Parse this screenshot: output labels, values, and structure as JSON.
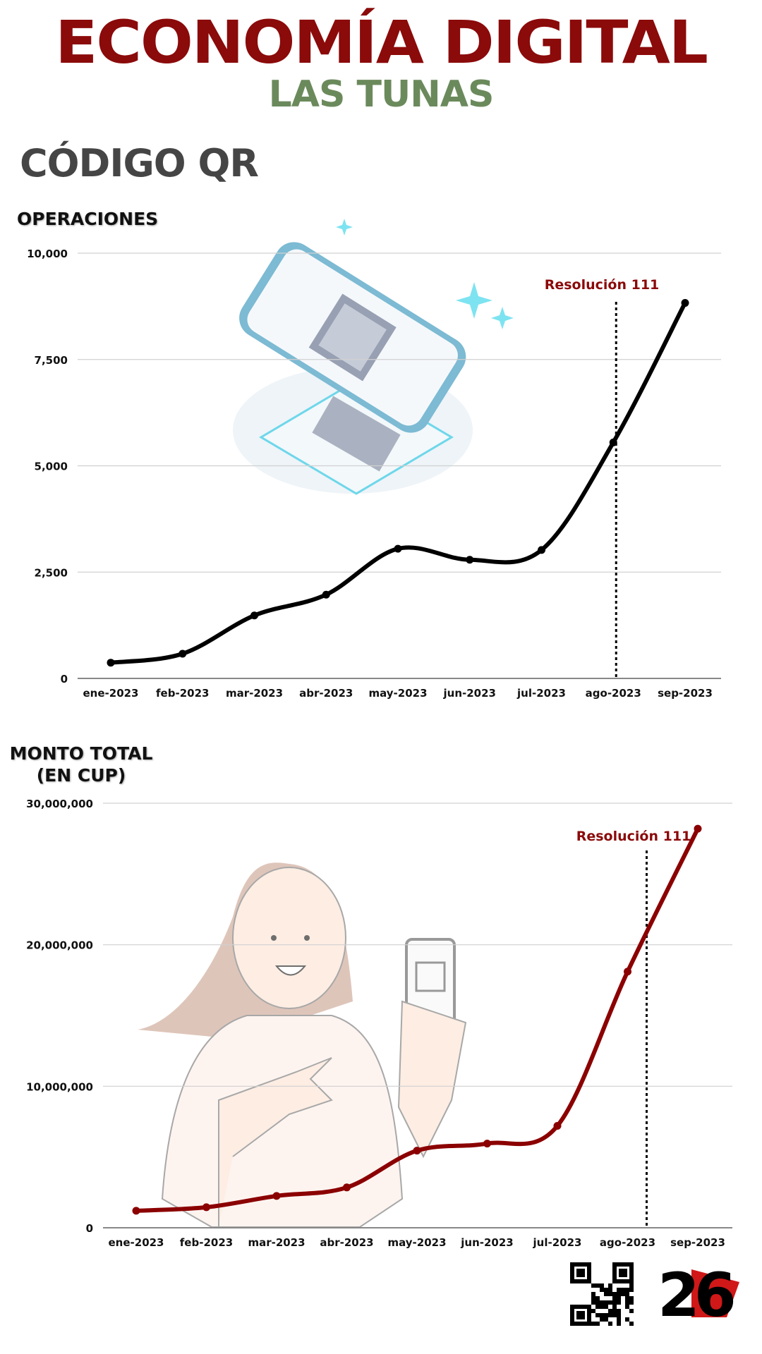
{
  "header": {
    "title": "ECONOMÍA DIGITAL",
    "subtitle": "LAS TUNAS",
    "section": "CÓDIGO QR"
  },
  "colors": {
    "title": "#8b0a0a",
    "subtitle": "#6b8a5c",
    "series1": "#000000",
    "series2": "#8b0000",
    "annotation": "#8b0a0a"
  },
  "chart_data": [
    {
      "type": "line",
      "title": "OPERACIONES",
      "categories": [
        "ene-2023",
        "feb-2023",
        "mar-2023",
        "abr-2023",
        "may-2023",
        "jun-2023",
        "jul-2023",
        "ago-2023",
        "sep-2023"
      ],
      "values": [
        370,
        580,
        1480,
        1970,
        3050,
        2790,
        3020,
        5550,
        8830
      ],
      "ylim": [
        0,
        10000
      ],
      "yticks": [
        "0",
        "2,500",
        "5,000",
        "7,500",
        "10,000"
      ],
      "ytick_values": [
        0,
        2500,
        5000,
        7500,
        10000
      ],
      "grid": true,
      "annotation": {
        "label": "Resolución 111",
        "at": "ago-2023",
        "style": "dotted vertical line"
      },
      "color": "#000000"
    },
    {
      "type": "line",
      "title": "MONTO TOTAL (EN CUP)",
      "title_lines": [
        "MONTO TOTAL",
        "(EN CUP)"
      ],
      "categories": [
        "ene-2023",
        "feb-2023",
        "mar-2023",
        "abr-2023",
        "may-2023",
        "jun-2023",
        "jul-2023",
        "ago-2023",
        "sep-2023"
      ],
      "values": [
        1200000,
        1450000,
        2250000,
        2850000,
        5450000,
        5950000,
        7200000,
        18100000,
        28200000
      ],
      "ylim": [
        0,
        30000000
      ],
      "yticks": [
        "0",
        "10,000,000",
        "20,000,000",
        "30,000,000"
      ],
      "ytick_values": [
        0,
        10000000,
        20000000,
        30000000
      ],
      "grid": true,
      "annotation": {
        "label": "Resolución 111",
        "at": "ago-2023",
        "style": "dotted vertical line"
      },
      "color": "#8b0000"
    }
  ],
  "footer": {
    "logo": "26",
    "qr_icon": "qr-code-icon"
  }
}
